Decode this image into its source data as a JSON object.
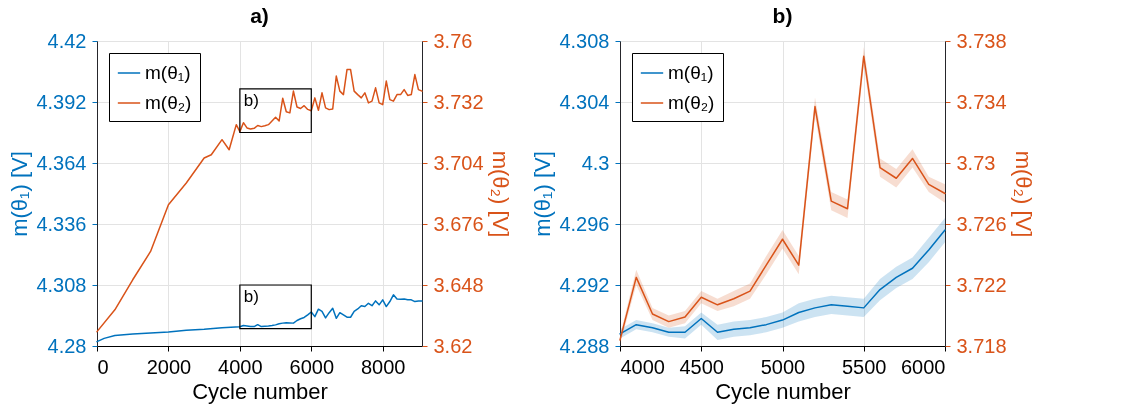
{
  "chart_data": [
    {
      "type": "line",
      "title": "a)",
      "xlabel": "Cycle number",
      "ylabel": "m(θ₁) [V]",
      "y2label": "m(θ₂) [V]",
      "xlim": [
        0,
        9100
      ],
      "xticks": [
        0,
        2000,
        4000,
        6000,
        8000
      ],
      "ylim": [
        4.28,
        4.42
      ],
      "yticks": [
        4.28,
        4.308,
        4.336,
        4.364,
        4.392,
        4.42
      ],
      "y2lim": [
        3.62,
        3.76
      ],
      "y2ticks": [
        3.62,
        3.648,
        3.676,
        3.704,
        3.732,
        3.76
      ],
      "grid": true,
      "legend": "top left",
      "series": [
        {
          "name": "m(θ₁)",
          "color": "#0072bd",
          "x": [
            0,
            200,
            500,
            1000,
            2000,
            2500,
            3000,
            3500,
            4000,
            4100,
            4200,
            4300,
            4400,
            4500,
            4600,
            4700,
            4800,
            4900,
            5000,
            5100,
            5200,
            5300,
            5400,
            5500,
            5600,
            5700,
            5800,
            5900,
            6000,
            6100,
            6200,
            6300,
            6400,
            6500,
            6600,
            6700,
            6800,
            6900,
            7000,
            7100,
            7200,
            7300,
            7400,
            7500,
            7600,
            7700,
            7800,
            7900,
            8000,
            8100,
            8200,
            8300,
            8400,
            8500,
            8600,
            8700,
            8800,
            8900,
            9000,
            9100
          ],
          "values": [
            4.282,
            4.2835,
            4.2848,
            4.2855,
            4.2864,
            4.2872,
            4.2877,
            4.2884,
            4.2888,
            4.2894,
            4.2892,
            4.2889,
            4.2889,
            4.2898,
            4.2889,
            4.2891,
            4.2892,
            4.2894,
            4.2897,
            4.2902,
            4.2905,
            4.2907,
            4.2906,
            4.2905,
            4.2917,
            4.2925,
            4.2931,
            4.2943,
            4.2956,
            4.2935,
            4.2969,
            4.2959,
            4.2929,
            4.2953,
            4.2973,
            4.2927,
            4.2953,
            4.2943,
            4.2932,
            4.2932,
            4.2959,
            4.297,
            4.2985,
            4.2981,
            4.2996,
            4.2985,
            4.3007,
            4.2989,
            4.3012,
            4.2981,
            4.3004,
            4.3035,
            4.3016,
            4.3015,
            4.3016,
            4.3012,
            4.3012,
            4.3004,
            4.3007,
            4.3007
          ]
        },
        {
          "name": "m(θ₂)",
          "color": "#d95319",
          "axis": "y2",
          "x": [
            0,
            500,
            1000,
            1500,
            2000,
            2500,
            3000,
            3200,
            3500,
            3700,
            3900,
            4000,
            4100,
            4200,
            4300,
            4400,
            4500,
            4600,
            4700,
            4800,
            4900,
            5000,
            5100,
            5200,
            5300,
            5400,
            5500,
            5600,
            5700,
            5800,
            5900,
            6000,
            6100,
            6200,
            6300,
            6400,
            6500,
            6600,
            6700,
            6800,
            6900,
            7000,
            7100,
            7200,
            7300,
            7400,
            7500,
            7600,
            7700,
            7800,
            7900,
            8000,
            8100,
            8200,
            8300,
            8400,
            8500,
            8600,
            8700,
            8800,
            8900,
            9000,
            9100
          ],
          "values": [
            3.6266,
            3.6366,
            3.6504,
            3.6634,
            3.6848,
            3.6948,
            3.7063,
            3.7078,
            3.7147,
            3.7101,
            3.7216,
            3.7184,
            3.7225,
            3.7201,
            3.7196,
            3.7199,
            3.7212,
            3.7207,
            3.7211,
            3.7216,
            3.7233,
            3.725,
            3.7233,
            3.7337,
            3.7275,
            3.727,
            3.737,
            3.7297,
            3.729,
            3.7303,
            3.7286,
            3.728,
            3.7339,
            3.7282,
            3.7362,
            3.7293,
            3.7285,
            3.7288,
            3.7439,
            3.737,
            3.7354,
            3.7469,
            3.7469,
            3.737,
            3.7354,
            3.7339,
            3.7362,
            3.7316,
            3.7324,
            3.7385,
            3.7316,
            3.7308,
            3.7416,
            3.7331,
            3.7324,
            3.7354,
            3.7354,
            3.7377,
            3.735,
            3.7354,
            3.7446,
            3.7377,
            3.737
          ]
        }
      ],
      "annotations": [
        "b)",
        "b)"
      ]
    },
    {
      "type": "line",
      "title": "b)",
      "xlabel": "Cycle number",
      "ylabel": "m(θ₁) [V]",
      "y2label": "m(θ₂) [V]",
      "xlim": [
        4000,
        6000
      ],
      "xticks": [
        4000,
        4500,
        5000,
        5500,
        6000
      ],
      "ylim": [
        4.288,
        4.308
      ],
      "yticks": [
        4.288,
        4.292,
        4.296,
        4.3,
        4.304,
        4.308
      ],
      "y2lim": [
        3.718,
        3.738
      ],
      "y2ticks": [
        3.718,
        3.722,
        3.726,
        3.73,
        3.734,
        3.738
      ],
      "grid": true,
      "legend": "top left",
      "x": [
        4000,
        4100,
        4200,
        4300,
        4400,
        4500,
        4600,
        4700,
        4800,
        4900,
        5000,
        5100,
        5200,
        5300,
        5400,
        5500,
        5600,
        5700,
        5800,
        5900,
        6000
      ],
      "series": [
        {
          "name": "m(θ₁)",
          "color": "#0072bd",
          "values": [
            4.2888,
            4.2894,
            4.2892,
            4.2889,
            4.2889,
            4.2898,
            4.2889,
            4.2891,
            4.2892,
            4.2894,
            4.2897,
            4.2902,
            4.2905,
            4.2907,
            4.2906,
            4.2905,
            4.2917,
            4.2925,
            4.2931,
            4.2943,
            4.2956
          ],
          "lower": [
            4.2885,
            4.2891,
            4.2889,
            4.2886,
            4.2885,
            4.2894,
            4.2884,
            4.2886,
            4.2887,
            4.2889,
            4.2892,
            4.2896,
            4.2899,
            4.2901,
            4.29,
            4.2899,
            4.291,
            4.2918,
            4.2924,
            4.2935,
            4.2948
          ],
          "upper": [
            4.2891,
            4.2897,
            4.2895,
            4.2892,
            4.2893,
            4.2902,
            4.2894,
            4.2896,
            4.2897,
            4.2899,
            4.2902,
            4.2908,
            4.2911,
            4.2913,
            4.2912,
            4.2911,
            4.2924,
            4.2932,
            4.2938,
            4.2951,
            4.2964
          ]
        },
        {
          "name": "m(θ₂)",
          "color": "#d95319",
          "axis": "y2",
          "values": [
            3.7184,
            3.7225,
            3.7201,
            3.7196,
            3.7199,
            3.7212,
            3.7207,
            3.7211,
            3.7216,
            3.7233,
            3.725,
            3.7233,
            3.7337,
            3.7275,
            3.727,
            3.737,
            3.7297,
            3.729,
            3.7303,
            3.7286,
            3.728
          ],
          "lower": [
            3.7181,
            3.722,
            3.7197,
            3.7192,
            3.7195,
            3.7208,
            3.7203,
            3.7206,
            3.7211,
            3.7227,
            3.7244,
            3.7227,
            3.7331,
            3.7269,
            3.7264,
            3.7364,
            3.7291,
            3.7284,
            3.7297,
            3.7281,
            3.7274
          ],
          "upper": [
            3.7187,
            3.723,
            3.7205,
            3.72,
            3.7203,
            3.7216,
            3.7211,
            3.7216,
            3.7221,
            3.7239,
            3.7256,
            3.7239,
            3.7343,
            3.7281,
            3.7276,
            3.7376,
            3.7303,
            3.7296,
            3.7309,
            3.7291,
            3.7286
          ]
        }
      ]
    }
  ]
}
